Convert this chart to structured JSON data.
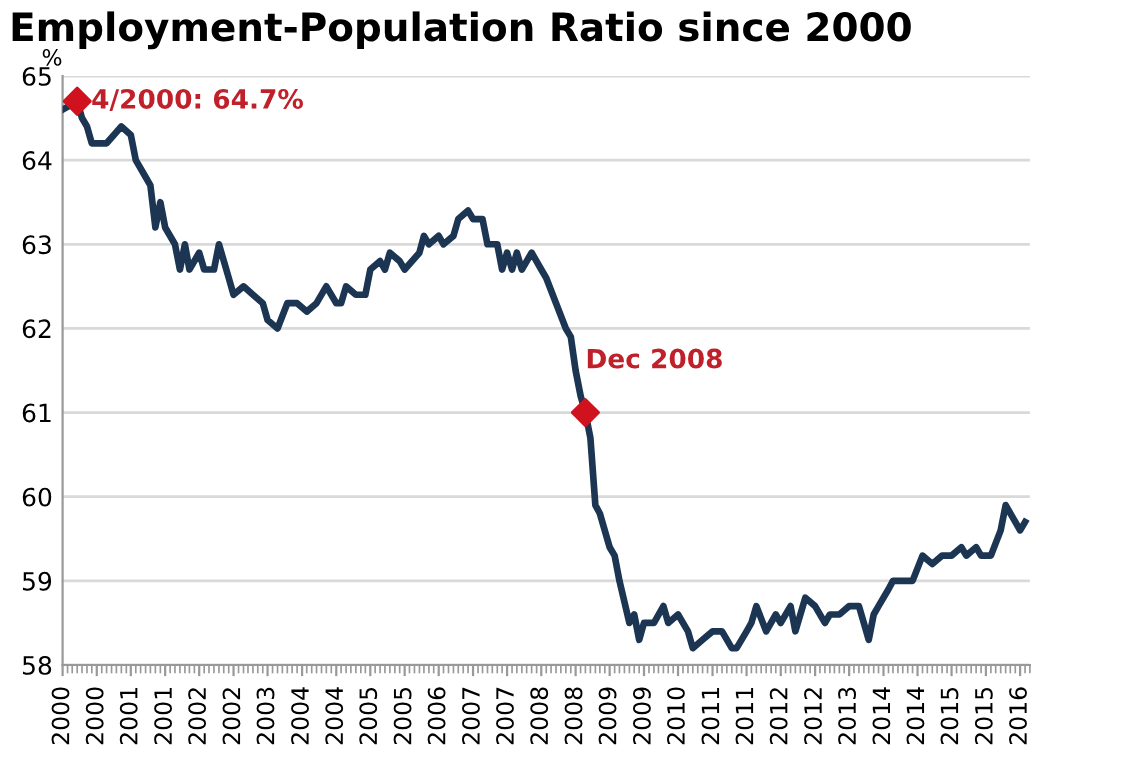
{
  "chart_data": {
    "type": "line",
    "title": "Employment-Population Ratio since 2000",
    "ylabel": "%",
    "x": [
      "2000-01",
      "2000-04",
      "2000-05",
      "2000-06",
      "2000-07",
      "2000-10",
      "2001-01",
      "2001-03",
      "2001-04",
      "2001-06",
      "2001-07",
      "2001-08",
      "2001-09",
      "2001-10",
      "2001-12",
      "2002-01",
      "2002-02",
      "2002-03",
      "2002-05",
      "2002-06",
      "2002-08",
      "2002-09",
      "2002-11",
      "2002-12",
      "2003-02",
      "2003-04",
      "2003-06",
      "2003-07",
      "2003-09",
      "2003-11",
      "2004-01",
      "2004-03",
      "2004-05",
      "2004-07",
      "2004-09",
      "2004-10",
      "2004-11",
      "2005-01",
      "2005-03",
      "2005-04",
      "2005-06",
      "2005-07",
      "2005-08",
      "2005-10",
      "2005-11",
      "2006-02",
      "2006-03",
      "2006-04",
      "2006-06",
      "2006-07",
      "2006-09",
      "2006-10",
      "2006-12",
      "2007-01",
      "2007-03",
      "2007-04",
      "2007-06",
      "2007-07",
      "2007-08",
      "2007-09",
      "2007-10",
      "2007-11",
      "2008-01",
      "2008-03",
      "2008-04",
      "2008-06",
      "2008-08",
      "2008-09",
      "2008-10",
      "2008-11",
      "2008-12",
      "2009-01",
      "2009-02",
      "2009-03",
      "2009-05",
      "2009-06",
      "2009-07",
      "2009-09",
      "2009-10",
      "2009-11",
      "2009-12",
      "2010-02",
      "2010-04",
      "2010-05",
      "2010-07",
      "2010-09",
      "2010-10",
      "2010-12",
      "2011-02",
      "2011-04",
      "2011-06",
      "2011-07",
      "2011-09",
      "2011-10",
      "2011-11",
      "2012-01",
      "2012-03",
      "2012-04",
      "2012-06",
      "2012-07",
      "2012-09",
      "2012-11",
      "2013-01",
      "2013-02",
      "2013-04",
      "2013-06",
      "2013-08",
      "2013-10",
      "2013-11",
      "2013-12",
      "2014-02",
      "2014-03",
      "2014-05",
      "2014-07",
      "2014-09",
      "2014-11",
      "2015-01",
      "2015-03",
      "2015-05",
      "2015-06",
      "2015-08",
      "2015-09",
      "2015-11",
      "2016-01",
      "2016-02",
      "2016-04",
      "2016-05",
      "2016-06"
    ],
    "series": [
      {
        "color": "#1b3553",
        "values": [
          64.6,
          64.7,
          64.5,
          64.4,
          64.2,
          64.2,
          64.4,
          64.3,
          64.0,
          63.8,
          63.7,
          63.2,
          63.5,
          63.2,
          63.0,
          62.7,
          63.0,
          62.7,
          62.9,
          62.7,
          62.7,
          63.0,
          62.6,
          62.4,
          62.5,
          62.4,
          62.3,
          62.1,
          62.0,
          62.3,
          62.3,
          62.2,
          62.3,
          62.5,
          62.3,
          62.3,
          62.5,
          62.4,
          62.4,
          62.7,
          62.8,
          62.7,
          62.9,
          62.8,
          62.7,
          62.9,
          63.1,
          63.0,
          63.1,
          63.0,
          63.1,
          63.3,
          63.4,
          63.3,
          63.3,
          63.0,
          63.0,
          62.7,
          62.9,
          62.7,
          62.9,
          62.7,
          62.9,
          62.7,
          62.6,
          62.3,
          62.0,
          61.9,
          61.5,
          61.2,
          61.0,
          60.7,
          59.9,
          59.8,
          59.4,
          59.3,
          59.0,
          58.5,
          58.6,
          58.3,
          58.5,
          58.5,
          58.7,
          58.5,
          58.6,
          58.4,
          58.2,
          58.3,
          58.4,
          58.4,
          58.2,
          58.2,
          58.4,
          58.5,
          58.7,
          58.4,
          58.6,
          58.5,
          58.7,
          58.4,
          58.8,
          58.7,
          58.5,
          58.6,
          58.6,
          58.7,
          58.7,
          58.3,
          58.6,
          58.7,
          58.9,
          59.0,
          59.0,
          59.0,
          59.3,
          59.2,
          59.3,
          59.3,
          59.4,
          59.3,
          59.4,
          59.3,
          59.3,
          59.6,
          59.9,
          59.7,
          59.6,
          59.7
        ]
      },
      {
        "type": "scatter",
        "color": "#d0121f",
        "marker": "diamond",
        "x": [
          "2000-04",
          "2008-12"
        ],
        "values": [
          64.7,
          61.0
        ]
      }
    ],
    "annotations": [
      {
        "text": "4/2000: 64.7%",
        "x": "2000-04",
        "y": 64.7
      },
      {
        "text": "Dec 2008",
        "x": "2008-12",
        "y": 61.0
      }
    ],
    "xlim": [
      "2000-01",
      "2016-07"
    ],
    "xticks": [
      {
        "value": "2000-01",
        "label": "2000"
      },
      {
        "value": "2000-08",
        "label": "2000"
      },
      {
        "value": "2001-03",
        "label": "2001"
      },
      {
        "value": "2001-10",
        "label": "2001"
      },
      {
        "value": "2002-05",
        "label": "2002"
      },
      {
        "value": "2002-12",
        "label": "2002"
      },
      {
        "value": "2003-07",
        "label": "2003"
      },
      {
        "value": "2004-02",
        "label": "2004"
      },
      {
        "value": "2004-09",
        "label": "2004"
      },
      {
        "value": "2005-04",
        "label": "2005"
      },
      {
        "value": "2005-11",
        "label": "2005"
      },
      {
        "value": "2006-06",
        "label": "2006"
      },
      {
        "value": "2007-01",
        "label": "2007"
      },
      {
        "value": "2007-08",
        "label": "2007"
      },
      {
        "value": "2008-03",
        "label": "2008"
      },
      {
        "value": "2008-10",
        "label": "2008"
      },
      {
        "value": "2009-05",
        "label": "2009"
      },
      {
        "value": "2009-12",
        "label": "2009"
      },
      {
        "value": "2010-07",
        "label": "2010"
      },
      {
        "value": "2011-02",
        "label": "2011"
      },
      {
        "value": "2011-09",
        "label": "2011"
      },
      {
        "value": "2012-04",
        "label": "2012"
      },
      {
        "value": "2012-11",
        "label": "2012"
      },
      {
        "value": "2013-06",
        "label": "2013"
      },
      {
        "value": "2014-01",
        "label": "2014"
      },
      {
        "value": "2014-08",
        "label": "2014"
      },
      {
        "value": "2015-03",
        "label": "2015"
      },
      {
        "value": "2015-10",
        "label": "2015"
      },
      {
        "value": "2016-05",
        "label": "2016"
      }
    ],
    "ylim": [
      58,
      65
    ],
    "yticks": [
      58,
      59,
      60,
      61,
      62,
      63,
      64,
      65
    ],
    "grid": "y",
    "legend": false
  }
}
